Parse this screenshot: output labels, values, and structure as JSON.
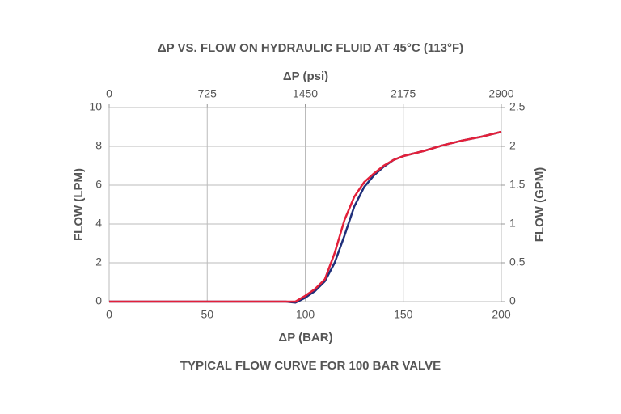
{
  "chart_data": {
    "type": "line",
    "title": "ΔP VS. FLOW ON HYDRAULIC FLUID AT 45°C (113°F)",
    "x_label": "ΔP (BAR)",
    "x2_label": "ΔP (psi)",
    "y_label": "FLOW (LPM)",
    "y2_label": "FLOW (GPM)",
    "caption": "TYPICAL FLOW CURVE FOR 100 BAR VALVE",
    "x": [
      0,
      50,
      90,
      95,
      100,
      105,
      110,
      115,
      120,
      125,
      130,
      135,
      140,
      145,
      150,
      160,
      170,
      180,
      190,
      200
    ],
    "series": [
      {
        "color": "#1f2f7a",
        "values": [
          0,
          0,
          0,
          -0.05,
          0.2,
          0.55,
          1.05,
          2.0,
          3.4,
          4.9,
          5.9,
          6.5,
          6.95,
          7.3,
          7.5,
          7.75,
          8.05,
          8.3,
          8.5,
          8.75
        ]
      },
      {
        "color": "#e3203a",
        "values": [
          0,
          0,
          0,
          0,
          0.3,
          0.65,
          1.15,
          2.5,
          4.2,
          5.4,
          6.15,
          6.6,
          7.0,
          7.3,
          7.5,
          7.75,
          8.05,
          8.3,
          8.5,
          8.75
        ]
      }
    ],
    "xlim": [
      0,
      200
    ],
    "xticks": [
      0,
      50,
      100,
      150,
      200
    ],
    "x2lim": [
      0,
      2900
    ],
    "x2ticks": [
      0,
      725,
      1450,
      2175,
      2900
    ],
    "ylim": [
      0,
      10
    ],
    "yticks": [
      0,
      2,
      4,
      6,
      8,
      10
    ],
    "y2lim": [
      0,
      2.5
    ],
    "y2ticks": [
      0,
      0.5,
      1,
      1.5,
      2,
      2.5
    ],
    "grid": true
  }
}
